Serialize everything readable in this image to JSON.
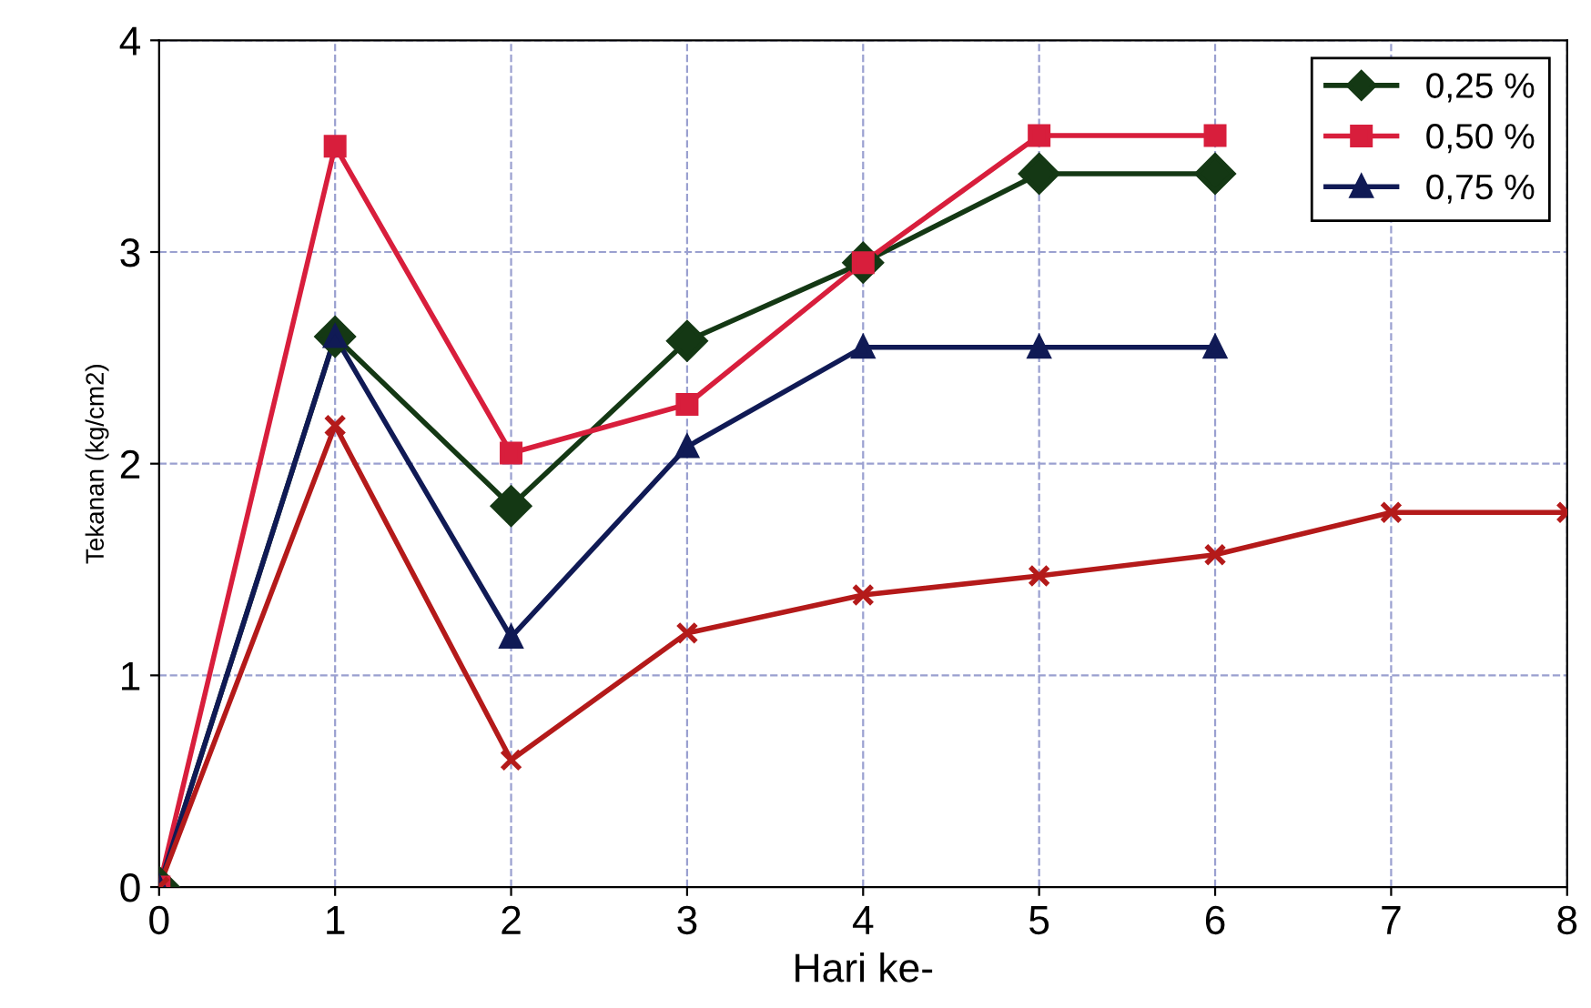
{
  "chart_data": {
    "type": "line",
    "xlabel": "Hari ke-",
    "ylabel": "Tekanan (kg/cm2)",
    "xlim": [
      0,
      8
    ],
    "xticks": [
      0,
      1,
      2,
      3,
      4,
      5,
      6,
      7,
      8
    ],
    "ylim": [
      0,
      4
    ],
    "yticks": [
      0,
      1,
      2,
      3,
      4
    ],
    "grid": true,
    "legend": "top right",
    "series": [
      {
        "name": "0,25 %",
        "color": "#143814",
        "marker": "diamond",
        "x": [
          0,
          1,
          2,
          3,
          4,
          5,
          6
        ],
        "values": [
          0,
          2.6,
          1.8,
          2.58,
          2.95,
          3.37,
          3.37
        ]
      },
      {
        "name": "0,50 %",
        "color": "#d81e3c",
        "marker": "square",
        "x": [
          0,
          1,
          2,
          3,
          4,
          5,
          6
        ],
        "values": [
          0,
          3.5,
          2.05,
          2.28,
          2.95,
          3.55,
          3.55
        ]
      },
      {
        "name": "0,75 %",
        "color": "#101a55",
        "marker": "triangle",
        "x": [
          0,
          1,
          2,
          3,
          4,
          5,
          6
        ],
        "values": [
          0,
          2.6,
          1.18,
          2.08,
          2.55,
          2.55,
          2.55
        ]
      },
      {
        "color": "#b41a1a",
        "marker": "cross",
        "x": [
          0,
          1,
          2,
          3,
          4,
          5,
          6,
          7,
          8
        ],
        "values": [
          0,
          2.18,
          0.6,
          1.2,
          1.38,
          1.47,
          1.57,
          1.77,
          1.77
        ]
      }
    ]
  }
}
